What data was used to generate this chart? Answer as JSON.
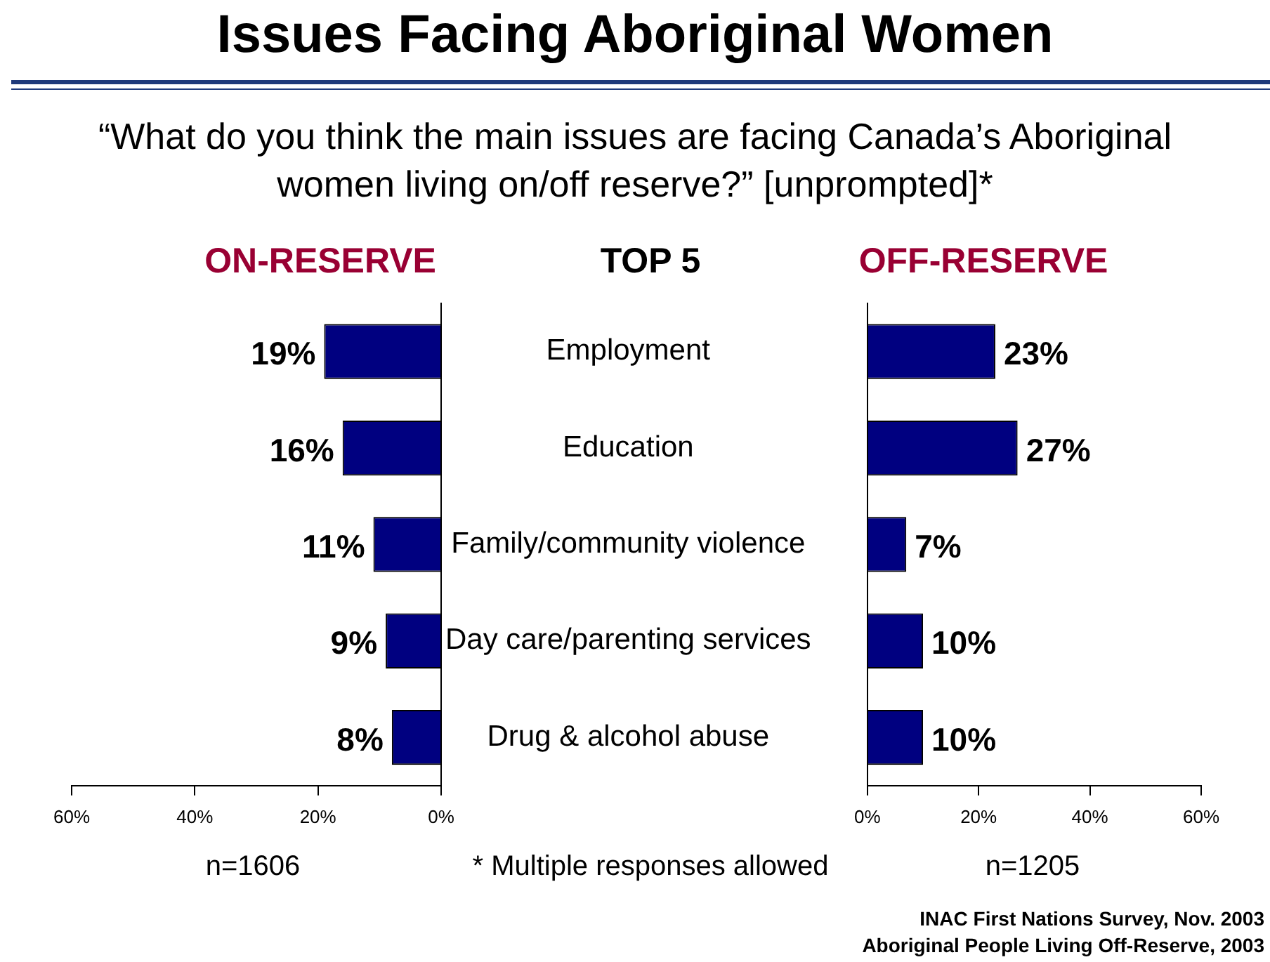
{
  "chart_data": [
    {
      "type": "other",
      "title": "Issues Facing Aboriginal Women",
      "subtitle": "“What do you think the main issues are facing Canada’s Aboriginal women living on/off reserve?” [unprompted]*",
      "annotations": [
        "* Multiple responses allowed",
        "INAC First Nations Survey, Nov. 2003",
        "Aboriginal People Living Off-Reserve, 2003"
      ]
    },
    {
      "type": "bar",
      "orientation": "horizontal",
      "title": "ON-RESERVE",
      "ylabel": "TOP 5",
      "xlabel": "n=1606",
      "categories": [
        "Employment",
        "Education",
        "Family/community violence",
        "Day care/parenting services",
        "Drug & alcohol abuse"
      ],
      "values": [
        19,
        16,
        11,
        9,
        8
      ],
      "color": "#000080",
      "value_labels": [
        "19%",
        "16%",
        "11%",
        "9%",
        "8%"
      ],
      "xlim": [
        60,
        0
      ],
      "xticks": [
        {
          "value": 60,
          "label": "60%"
        },
        {
          "value": 40,
          "label": "40%"
        },
        {
          "value": 20,
          "label": "20%"
        },
        {
          "value": 0,
          "label": "0%"
        }
      ],
      "grid": false
    },
    {
      "type": "bar",
      "orientation": "horizontal",
      "title": "OFF-RESERVE",
      "xlabel": "n=1205",
      "tick_labels": "x",
      "categories": [
        null,
        null,
        null,
        null,
        null
      ],
      "values": [
        23,
        27,
        7,
        10,
        10
      ],
      "color": "#000080",
      "value_labels": [
        "23%",
        "27%",
        "7%",
        "10%",
        "10%"
      ],
      "xlim": [
        0,
        60
      ],
      "xticks": [
        {
          "value": 0,
          "label": "0%"
        },
        {
          "value": 20,
          "label": "20%"
        },
        {
          "value": 40,
          "label": "40%"
        },
        {
          "value": 60,
          "label": "60%"
        }
      ],
      "grid": false
    }
  ]
}
